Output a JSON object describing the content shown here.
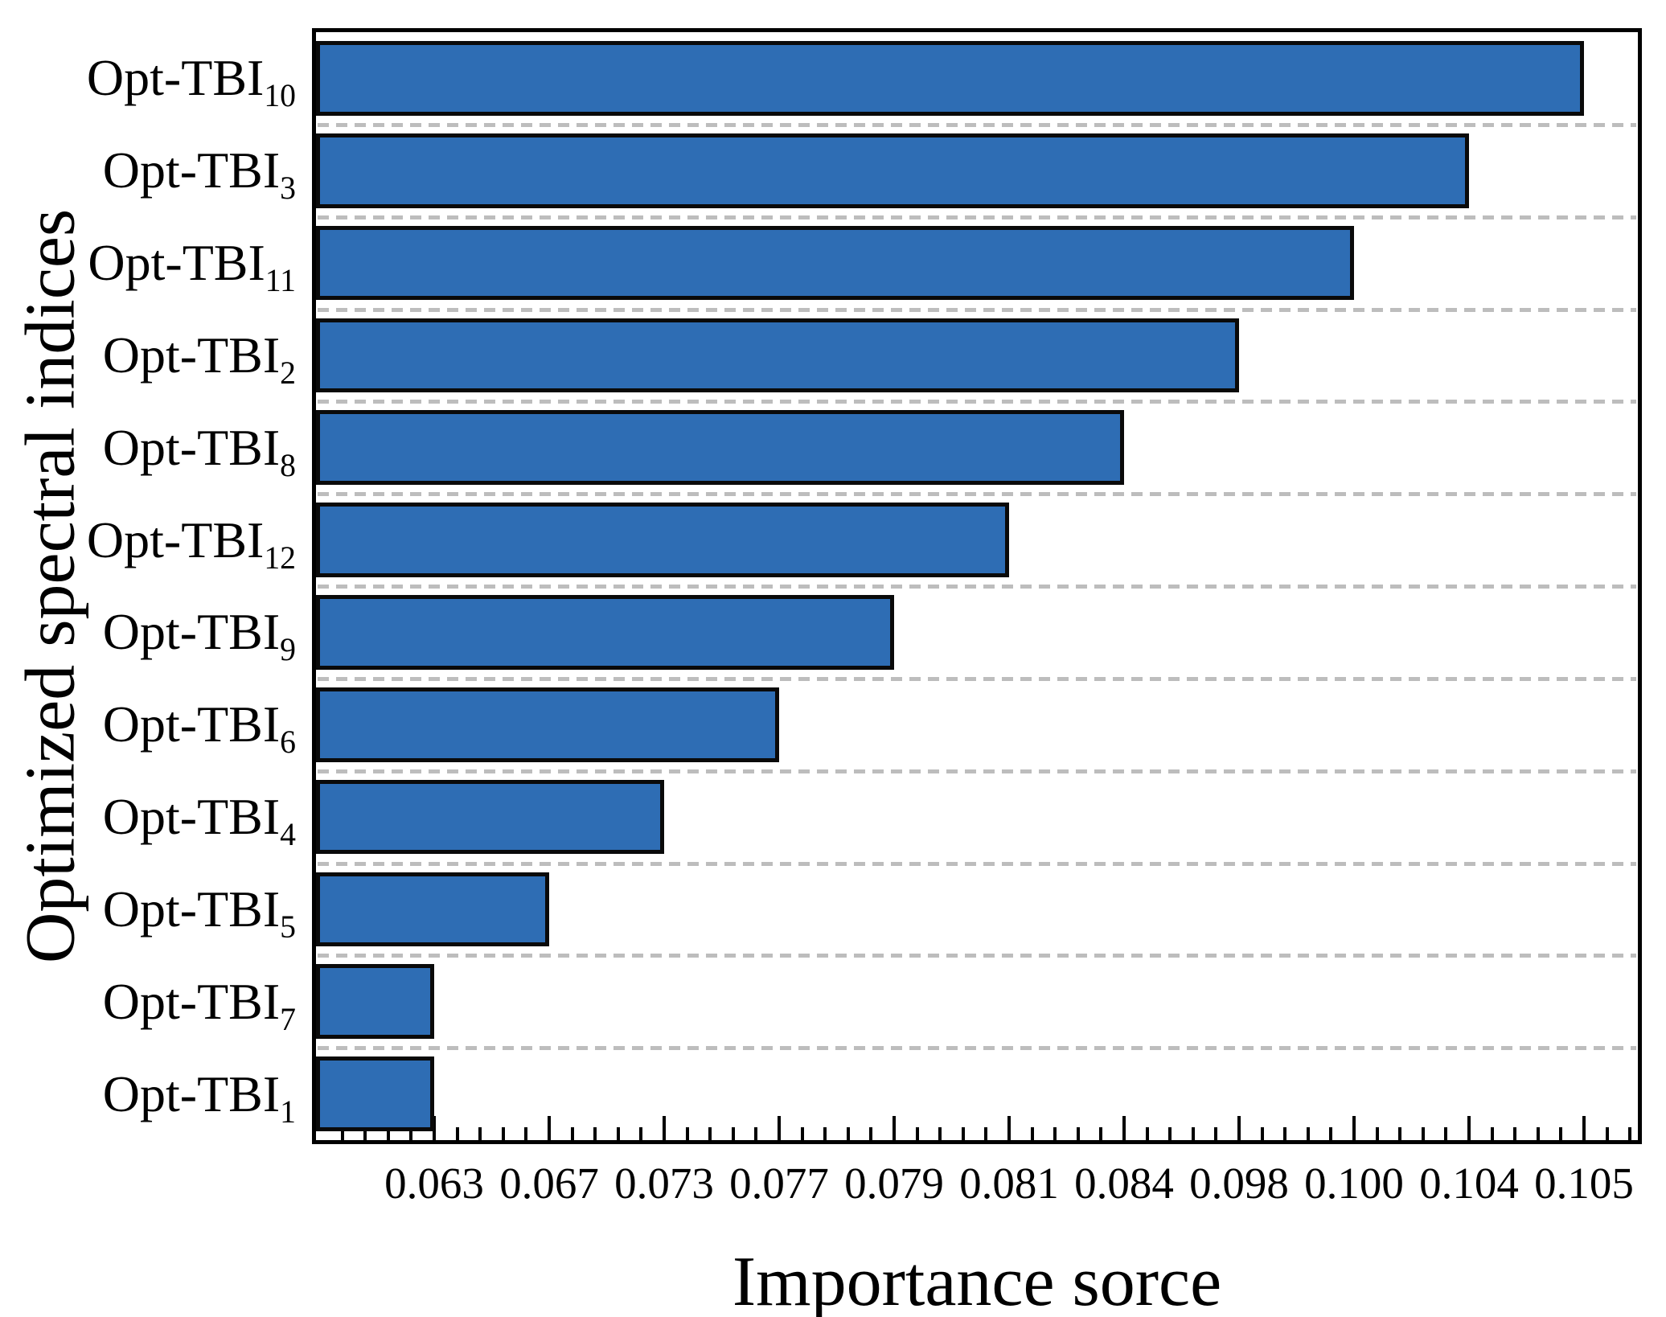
{
  "chart_data": {
    "type": "bar",
    "orientation": "horizontal",
    "title": "",
    "xlabel": "Importance sorce",
    "ylabel": "Optimized spectral indices",
    "x_tick_labels": [
      "0.063",
      "0.067",
      "0.073",
      "0.077",
      "0.079",
      "0.081",
      "0.084",
      "0.098",
      "0.100",
      "0.104",
      "0.105"
    ],
    "x_axis_note": "tick labels are evenly spaced (category-style axis, not linear); each bar's right end aligns with the tick equal to its importance score; 4 minor ticks between each pair of major ticks",
    "bars": [
      {
        "name": "Opt-TBI",
        "sub": "10",
        "value": 0.105
      },
      {
        "name": "Opt-TBI",
        "sub": "3",
        "value": 0.104
      },
      {
        "name": "Opt-TBI",
        "sub": "11",
        "value": 0.1
      },
      {
        "name": "Opt-TBI",
        "sub": "2",
        "value": 0.098
      },
      {
        "name": "Opt-TBI",
        "sub": "8",
        "value": 0.084
      },
      {
        "name": "Opt-TBI",
        "sub": "12",
        "value": 0.081
      },
      {
        "name": "Opt-TBI",
        "sub": "9",
        "value": 0.079
      },
      {
        "name": "Opt-TBI",
        "sub": "6",
        "value": 0.077
      },
      {
        "name": "Opt-TBI",
        "sub": "4",
        "value": 0.073
      },
      {
        "name": "Opt-TBI",
        "sub": "5",
        "value": 0.067
      },
      {
        "name": "Opt-TBI",
        "sub": "7",
        "value": 0.063
      },
      {
        "name": "Opt-TBI",
        "sub": "1",
        "value": 0.063
      }
    ],
    "grid": "dashed horizontal separator between each category row",
    "legend": null,
    "colors": {
      "bar_fill": "#2E6DB4",
      "bar_border": "#0A0A0A",
      "gridline": "#BDBDBD",
      "axis": "#000000",
      "text": "#000000",
      "background": "#FFFFFF"
    }
  }
}
